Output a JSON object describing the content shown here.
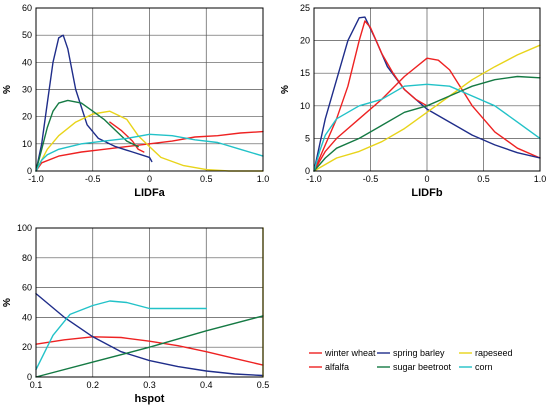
{
  "colors": {
    "winter_wheat": "#ee2222",
    "spring_barley": "#1f2d8a",
    "rapeseed": "#e8d41a",
    "alfalfa": "#ee2222",
    "sugar_beetroot": "#157a44",
    "corn": "#22c2c8"
  },
  "legend": {
    "position": "bottom-right",
    "entries": [
      {
        "label": "winter wheat",
        "color": "#ee2222"
      },
      {
        "label": "spring barley",
        "color": "#1f2d8a"
      },
      {
        "label": "rapeseed",
        "color": "#e8d41a"
      },
      {
        "label": "alfalfa",
        "color": "#ee2222"
      },
      {
        "label": "sugar beetroot",
        "color": "#157a44"
      },
      {
        "label": "corn",
        "color": "#22c2c8"
      }
    ]
  },
  "chart_data": [
    {
      "type": "line",
      "xlabel": "LIDFa",
      "ylabel": "%",
      "xlim": [
        -1.0,
        1.0
      ],
      "ylim": [
        0,
        60
      ],
      "xticks": [
        -1.0,
        -0.5,
        0.0,
        0.5,
        1.0
      ],
      "xtick_labels": [
        "-1.0",
        "-0.5",
        "0",
        "0.5",
        "1.0"
      ],
      "yticks": [
        0,
        10,
        20,
        30,
        40,
        50,
        60
      ],
      "ytick_labels": [
        "0",
        "10",
        "20",
        "30",
        "40",
        "50",
        "60"
      ],
      "grid": true,
      "series": [
        {
          "key": "winter_wheat",
          "color": "#ee2222",
          "points": [
            [
              -1,
              0
            ],
            [
              -0.95,
              3
            ],
            [
              -0.8,
              5.5
            ],
            [
              -0.6,
              7
            ],
            [
              -0.4,
              8
            ],
            [
              -0.2,
              9
            ],
            [
              0,
              10
            ],
            [
              0.2,
              11
            ],
            [
              0.4,
              12.5
            ],
            [
              0.6,
              13
            ],
            [
              0.8,
              14
            ],
            [
              1,
              14.5
            ]
          ]
        },
        {
          "key": "spring_barley",
          "color": "#1f2d8a",
          "points": [
            [
              -1,
              0
            ],
            [
              -0.95,
              10
            ],
            [
              -0.9,
              25
            ],
            [
              -0.85,
              40
            ],
            [
              -0.8,
              49
            ],
            [
              -0.76,
              50
            ],
            [
              -0.72,
              45
            ],
            [
              -0.65,
              30
            ],
            [
              -0.55,
              17
            ],
            [
              -0.45,
              12
            ],
            [
              -0.3,
              9
            ],
            [
              -0.15,
              7
            ],
            [
              0,
              5
            ],
            [
              0.02,
              3.5
            ]
          ]
        },
        {
          "key": "rapeseed",
          "color": "#e8d41a",
          "points": [
            [
              -1,
              0
            ],
            [
              -0.9,
              8
            ],
            [
              -0.8,
              13
            ],
            [
              -0.65,
              18
            ],
            [
              -0.5,
              21
            ],
            [
              -0.35,
              22
            ],
            [
              -0.2,
              19
            ],
            [
              -0.1,
              13
            ],
            [
              0,
              9
            ],
            [
              0.1,
              5
            ],
            [
              0.3,
              2
            ],
            [
              0.5,
              0.5
            ],
            [
              0.7,
              0
            ],
            [
              1,
              0
            ]
          ]
        },
        {
          "key": "alfalfa",
          "color": "#ee2222",
          "points": [
            [
              -0.35,
              18
            ],
            [
              -0.25,
              15
            ],
            [
              -0.15,
              11
            ],
            [
              -0.1,
              8
            ],
            [
              -0.05,
              7
            ]
          ]
        },
        {
          "key": "sugar_beetroot",
          "color": "#157a44",
          "points": [
            [
              -1,
              0
            ],
            [
              -0.95,
              8
            ],
            [
              -0.9,
              16
            ],
            [
              -0.85,
              22
            ],
            [
              -0.8,
              25
            ],
            [
              -0.72,
              26
            ],
            [
              -0.6,
              25
            ],
            [
              -0.5,
              22
            ],
            [
              -0.4,
              19
            ],
            [
              -0.3,
              15
            ],
            [
              -0.2,
              11
            ],
            [
              -0.1,
              9
            ]
          ]
        },
        {
          "key": "corn",
          "color": "#22c2c8",
          "points": [
            [
              -1,
              0
            ],
            [
              -0.95,
              4
            ],
            [
              -0.9,
              6
            ],
            [
              -0.8,
              8
            ],
            [
              -0.6,
              10
            ],
            [
              -0.4,
              11
            ],
            [
              -0.2,
              12
            ],
            [
              0,
              13.5
            ],
            [
              0.2,
              13
            ],
            [
              0.4,
              11.5
            ],
            [
              0.6,
              10.5
            ],
            [
              0.8,
              8
            ],
            [
              1,
              5.5
            ]
          ]
        }
      ]
    },
    {
      "type": "line",
      "xlabel": "LIDFb",
      "ylabel": "%",
      "xlim": [
        -1.0,
        1.0
      ],
      "ylim": [
        0,
        25
      ],
      "xticks": [
        -1.0,
        -0.5,
        0.0,
        0.5,
        1.0
      ],
      "xtick_labels": [
        "-1.0",
        "-0.5",
        "0",
        "0.5",
        "1.0"
      ],
      "yticks": [
        0,
        5,
        10,
        15,
        20,
        25
      ],
      "ytick_labels": [
        "0",
        "5",
        "10",
        "15",
        "20",
        "25"
      ],
      "grid": true,
      "series": [
        {
          "key": "winter_wheat",
          "color": "#ee2222",
          "points": [
            [
              -1,
              0
            ],
            [
              -0.9,
              3
            ],
            [
              -0.8,
              5
            ],
            [
              -0.6,
              8
            ],
            [
              -0.4,
              11
            ],
            [
              -0.2,
              14.5
            ],
            [
              0,
              17.3
            ],
            [
              0.1,
              17
            ],
            [
              0.2,
              15.5
            ],
            [
              0.4,
              10
            ],
            [
              0.6,
              6
            ],
            [
              0.8,
              3.5
            ],
            [
              1,
              2
            ]
          ]
        },
        {
          "key": "spring_barley",
          "color": "#1f2d8a",
          "points": [
            [
              -1,
              0
            ],
            [
              -0.95,
              4
            ],
            [
              -0.9,
              8
            ],
            [
              -0.8,
              14
            ],
            [
              -0.7,
              20
            ],
            [
              -0.6,
              23.5
            ],
            [
              -0.55,
              23.6
            ],
            [
              -0.45,
              20
            ],
            [
              -0.35,
              16
            ],
            [
              -0.2,
              12.5
            ],
            [
              0,
              9.5
            ],
            [
              0.2,
              7.5
            ],
            [
              0.4,
              5.5
            ],
            [
              0.6,
              4
            ],
            [
              0.8,
              2.8
            ],
            [
              1,
              2
            ]
          ]
        },
        {
          "key": "rapeseed",
          "color": "#e8d41a",
          "points": [
            [
              -1,
              0
            ],
            [
              -0.9,
              1
            ],
            [
              -0.8,
              2
            ],
            [
              -0.6,
              3
            ],
            [
              -0.4,
              4.5
            ],
            [
              -0.2,
              6.5
            ],
            [
              0,
              9
            ],
            [
              0.2,
              11.5
            ],
            [
              0.4,
              14
            ],
            [
              0.6,
              16
            ],
            [
              0.8,
              17.8
            ],
            [
              1,
              19.3
            ]
          ]
        },
        {
          "key": "alfalfa",
          "color": "#ee2222",
          "points": [
            [
              -1,
              0
            ],
            [
              -0.9,
              4
            ],
            [
              -0.8,
              8
            ],
            [
              -0.7,
              13
            ],
            [
              -0.6,
              20
            ],
            [
              -0.55,
              23
            ],
            [
              -0.5,
              22
            ],
            [
              -0.4,
              18
            ],
            [
              -0.3,
              15
            ],
            [
              -0.2,
              12.5
            ],
            [
              -0.1,
              11
            ],
            [
              0,
              10
            ]
          ]
        },
        {
          "key": "sugar_beetroot",
          "color": "#157a44",
          "points": [
            [
              -1,
              0
            ],
            [
              -0.9,
              2
            ],
            [
              -0.8,
              3.5
            ],
            [
              -0.6,
              5
            ],
            [
              -0.4,
              7
            ],
            [
              -0.2,
              9
            ],
            [
              0,
              10
            ],
            [
              0.2,
              11.5
            ],
            [
              0.4,
              13
            ],
            [
              0.6,
              14
            ],
            [
              0.8,
              14.5
            ],
            [
              1,
              14.3
            ]
          ]
        },
        {
          "key": "corn",
          "color": "#22c2c8",
          "points": [
            [
              -1,
              0
            ],
            [
              -0.95,
              3
            ],
            [
              -0.9,
              5.5
            ],
            [
              -0.8,
              8
            ],
            [
              -0.6,
              10
            ],
            [
              -0.4,
              11
            ],
            [
              -0.2,
              13
            ],
            [
              0,
              13.3
            ],
            [
              0.2,
              13
            ],
            [
              0.4,
              11.5
            ],
            [
              0.6,
              10
            ],
            [
              0.8,
              7.5
            ],
            [
              1,
              5
            ]
          ]
        }
      ]
    },
    {
      "type": "line",
      "xlabel": "hspot",
      "ylabel": "%",
      "xlim": [
        0.1,
        0.5
      ],
      "ylim": [
        0,
        100
      ],
      "xticks": [
        0.1,
        0.2,
        0.3,
        0.4,
        0.5
      ],
      "xtick_labels": [
        "0.1",
        "0.2",
        "0.3",
        "0.4",
        "0.5"
      ],
      "yticks": [
        0,
        20,
        40,
        60,
        80,
        100
      ],
      "ytick_labels": [
        "0",
        "20",
        "40",
        "60",
        "80",
        "100"
      ],
      "grid": true,
      "series": [
        {
          "key": "winter_wheat",
          "color": "#ee2222",
          "points": [
            [
              0.1,
              22
            ],
            [
              0.15,
              25
            ],
            [
              0.2,
              27
            ],
            [
              0.25,
              26.5
            ],
            [
              0.3,
              24
            ],
            [
              0.35,
              21
            ],
            [
              0.4,
              17
            ],
            [
              0.45,
              12.5
            ],
            [
              0.5,
              8
            ]
          ]
        },
        {
          "key": "spring_barley",
          "color": "#1f2d8a",
          "points": [
            [
              0.1,
              56
            ],
            [
              0.15,
              40
            ],
            [
              0.2,
              27
            ],
            [
              0.25,
              17
            ],
            [
              0.3,
              11
            ],
            [
              0.35,
              7
            ],
            [
              0.4,
              4
            ],
            [
              0.45,
              2
            ],
            [
              0.5,
              1
            ]
          ]
        },
        {
          "key": "rapeseed",
          "color": "#e8d41a",
          "points": [
            [
              0.5,
              0
            ],
            [
              0.5,
              100
            ]
          ]
        },
        {
          "key": "alfalfa",
          "color": "#ee2222",
          "points": []
        },
        {
          "key": "sugar_beetroot",
          "color": "#157a44",
          "points": [
            [
              0.1,
              0
            ],
            [
              0.2,
              10
            ],
            [
              0.3,
              20
            ],
            [
              0.4,
              31
            ],
            [
              0.5,
              41
            ]
          ]
        },
        {
          "key": "corn",
          "color": "#22c2c8",
          "points": [
            [
              0.1,
              5
            ],
            [
              0.13,
              28
            ],
            [
              0.16,
              42
            ],
            [
              0.2,
              48
            ],
            [
              0.23,
              51
            ],
            [
              0.26,
              50
            ],
            [
              0.3,
              46
            ],
            [
              0.35,
              46
            ],
            [
              0.4,
              46
            ]
          ]
        }
      ]
    }
  ]
}
